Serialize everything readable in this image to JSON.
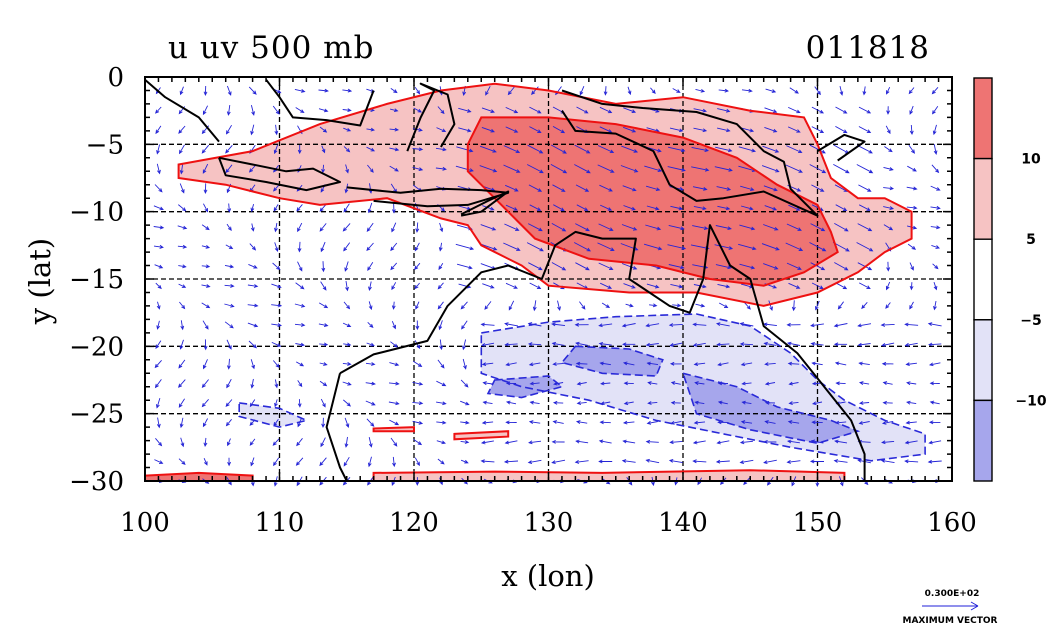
{
  "chart_data": {
    "type": "heatmap",
    "title": "u uv 500 mb",
    "date_label": "011818",
    "xlabel": "x (lon)",
    "ylabel": "y (lat)",
    "xlim": [
      100,
      160
    ],
    "ylim": [
      -30,
      0
    ],
    "x_ticks": [
      100,
      110,
      120,
      130,
      140,
      150,
      160
    ],
    "y_ticks": [
      0,
      -5,
      -10,
      -15,
      -20,
      -25,
      -30
    ],
    "x_tick_labels": [
      "100",
      "110",
      "120",
      "130",
      "140",
      "150",
      "160"
    ],
    "y_tick_labels": [
      "0",
      "−5",
      "−10",
      "−15",
      "−20",
      "−25",
      "−30"
    ],
    "grid": true,
    "colorbar": {
      "labels": [
        "10",
        "5",
        "−5",
        "−10"
      ],
      "bands": [
        {
          "from": 10,
          "to": 15,
          "color": "#ee7473"
        },
        {
          "from": 5,
          "to": 10,
          "color": "#f6c3c3"
        },
        {
          "from": -5,
          "to": 5,
          "color": "#ffffff"
        },
        {
          "from": -10,
          "to": -5,
          "color": "#e2e2f7"
        },
        {
          "from": -15,
          "to": -10,
          "color": "#a6a6ec"
        }
      ]
    },
    "regions": [
      {
        "level": "5 to 10",
        "polygon": [
          [
            102.5,
            -6.5
          ],
          [
            108,
            -5.5
          ],
          [
            113,
            -3.5
          ],
          [
            118,
            -2
          ],
          [
            122,
            -1
          ],
          [
            126,
            -0.5
          ],
          [
            130,
            -1
          ],
          [
            135,
            -2
          ],
          [
            140,
            -1.5
          ],
          [
            145,
            -2.5
          ],
          [
            149,
            -3
          ],
          [
            150,
            -5
          ],
          [
            151,
            -7.5
          ],
          [
            153,
            -9
          ],
          [
            155,
            -9
          ],
          [
            157,
            -10
          ],
          [
            157,
            -12
          ],
          [
            155,
            -13
          ],
          [
            153,
            -14.5
          ],
          [
            150,
            -16
          ],
          [
            146,
            -17
          ],
          [
            141,
            -16
          ],
          [
            136,
            -16
          ],
          [
            130,
            -15.5
          ],
          [
            128,
            -14
          ],
          [
            125,
            -12.5
          ],
          [
            124,
            -11
          ],
          [
            122,
            -10.5
          ],
          [
            118,
            -9
          ],
          [
            113,
            -9.5
          ],
          [
            110,
            -9
          ],
          [
            106,
            -8
          ],
          [
            102.5,
            -7.5
          ]
        ]
      },
      {
        "level": "10 to 15",
        "polygon": [
          [
            125,
            -3
          ],
          [
            130,
            -3
          ],
          [
            135,
            -3.5
          ],
          [
            140,
            -4.5
          ],
          [
            144,
            -6
          ],
          [
            147,
            -8
          ],
          [
            150,
            -9.5
          ],
          [
            151,
            -11.5
          ],
          [
            151.5,
            -13
          ],
          [
            149,
            -14.5
          ],
          [
            146,
            -15.5
          ],
          [
            142,
            -15
          ],
          [
            138,
            -14
          ],
          [
            133,
            -13.5
          ],
          [
            129,
            -12
          ],
          [
            126,
            -9
          ],
          [
            124,
            -7
          ],
          [
            124,
            -5
          ]
        ]
      },
      {
        "level": "10 to 15",
        "polygon": [
          [
            100,
            -29.6
          ],
          [
            104,
            -29.4
          ],
          [
            108,
            -29.6
          ],
          [
            108,
            -30
          ],
          [
            100,
            -30
          ]
        ]
      },
      {
        "level": "5 to 10",
        "polygon": [
          [
            117,
            -29.4
          ],
          [
            126,
            -29.3
          ],
          [
            134,
            -29.4
          ],
          [
            145,
            -29.2
          ],
          [
            152,
            -29.4
          ],
          [
            152,
            -30
          ],
          [
            117,
            -30
          ]
        ]
      },
      {
        "level": "5 to 10",
        "polygon": [
          [
            123,
            -26.5
          ],
          [
            127,
            -26.3
          ],
          [
            127,
            -26.7
          ],
          [
            123,
            -26.9
          ]
        ]
      },
      {
        "level": "5 to 10",
        "polygon": [
          [
            117,
            -26.1
          ],
          [
            120,
            -26.0
          ],
          [
            120,
            -26.3
          ],
          [
            117,
            -26.3
          ]
        ]
      },
      {
        "level": "-10 to -5",
        "polygon": [
          [
            125,
            -19
          ],
          [
            130,
            -18.2
          ],
          [
            135,
            -17.8
          ],
          [
            141,
            -17.6
          ],
          [
            145,
            -18.5
          ],
          [
            148,
            -20.5
          ],
          [
            150,
            -22.5
          ],
          [
            152,
            -24
          ],
          [
            155,
            -25.5
          ],
          [
            158,
            -26.5
          ],
          [
            158,
            -28
          ],
          [
            154,
            -28.5
          ],
          [
            148,
            -27.5
          ],
          [
            143,
            -26.5
          ],
          [
            138,
            -25.5
          ],
          [
            133,
            -24
          ],
          [
            128,
            -23
          ],
          [
            125,
            -22
          ]
        ]
      },
      {
        "level": "-15 to -10",
        "polygon": [
          [
            132,
            -20
          ],
          [
            136,
            -20.2
          ],
          [
            138.5,
            -21
          ],
          [
            138,
            -22.2
          ],
          [
            134,
            -22
          ],
          [
            131,
            -21.2
          ]
        ]
      },
      {
        "level": "-15 to -10",
        "polygon": [
          [
            126,
            -22.5
          ],
          [
            130,
            -22.2
          ],
          [
            131,
            -23
          ],
          [
            128,
            -23.8
          ],
          [
            125.5,
            -23.5
          ]
        ]
      },
      {
        "level": "-15 to -10",
        "polygon": [
          [
            140,
            -22
          ],
          [
            144,
            -23
          ],
          [
            147,
            -24.5
          ],
          [
            151,
            -25.5
          ],
          [
            153,
            -26.3
          ],
          [
            150,
            -27.2
          ],
          [
            145,
            -26.2
          ],
          [
            141,
            -25
          ]
        ]
      },
      {
        "level": "-10 to -5",
        "polygon": [
          [
            107,
            -24.2
          ],
          [
            110,
            -24.6
          ],
          [
            112,
            -25.5
          ],
          [
            110,
            -26
          ],
          [
            107,
            -25.2
          ]
        ]
      }
    ],
    "coastlines": [
      [
        [
          114.5,
          -22
        ],
        [
          114,
          -24
        ],
        [
          113.5,
          -26
        ],
        [
          114.5,
          -29
        ],
        [
          115,
          -30
        ]
      ],
      [
        [
          114.5,
          -22
        ],
        [
          117,
          -20.6
        ],
        [
          121,
          -19.6
        ],
        [
          122.5,
          -17
        ],
        [
          125,
          -14.5
        ],
        [
          127,
          -14
        ],
        [
          129.5,
          -15
        ],
        [
          130.5,
          -12.5
        ],
        [
          132,
          -11.5
        ],
        [
          134,
          -12
        ],
        [
          136.5,
          -12
        ],
        [
          136,
          -15
        ],
        [
          139,
          -17
        ],
        [
          140.5,
          -17.5
        ],
        [
          141.5,
          -15
        ],
        [
          142,
          -11
        ],
        [
          143.5,
          -14
        ],
        [
          145,
          -15
        ],
        [
          146,
          -18.5
        ],
        [
          148.5,
          -20.5
        ],
        [
          150.5,
          -23
        ],
        [
          152.5,
          -25.5
        ],
        [
          153.5,
          -28
        ],
        [
          153.5,
          -30
        ]
      ],
      [
        [
          105.5,
          -6
        ],
        [
          108,
          -6.5
        ],
        [
          110.5,
          -7
        ],
        [
          112.5,
          -6.8
        ],
        [
          114.5,
          -7.8
        ],
        [
          112,
          -8.4
        ],
        [
          109,
          -7.8
        ],
        [
          106,
          -7.3
        ],
        [
          105.5,
          -6
        ]
      ],
      [
        [
          115,
          -8.2
        ],
        [
          119,
          -8.6
        ],
        [
          122,
          -8.3
        ],
        [
          125,
          -8.4
        ],
        [
          127,
          -8.6
        ],
        [
          124,
          -9.5
        ],
        [
          121,
          -9.6
        ],
        [
          117,
          -9.2
        ]
      ],
      [
        [
          123.5,
          -10.2
        ],
        [
          125.5,
          -9.2
        ],
        [
          127,
          -8.5
        ],
        [
          125,
          -10
        ],
        [
          123.5,
          -10.3
        ]
      ],
      [
        [
          119.5,
          -5.5
        ],
        [
          120.5,
          -3
        ],
        [
          121.5,
          -1
        ],
        [
          120.5,
          -0.5
        ],
        [
          122.5,
          -1.3
        ],
        [
          123,
          -3.5
        ],
        [
          122,
          -5.2
        ]
      ],
      [
        [
          131,
          -1
        ],
        [
          134,
          -2
        ],
        [
          137,
          -2.3
        ],
        [
          141,
          -2.6
        ],
        [
          144,
          -3.5
        ],
        [
          146,
          -5.5
        ],
        [
          147.5,
          -6.3
        ],
        [
          148,
          -8.3
        ],
        [
          150,
          -10.3
        ],
        [
          146,
          -8.5
        ],
        [
          143,
          -9
        ],
        [
          141,
          -9.2
        ],
        [
          139,
          -8
        ],
        [
          137.8,
          -5.5
        ],
        [
          135,
          -4.2
        ],
        [
          132,
          -4
        ],
        [
          131,
          -2.5
        ]
      ],
      [
        [
          150,
          -5.5
        ],
        [
          152,
          -4.3
        ],
        [
          153.5,
          -4.8
        ],
        [
          151.5,
          -6.2
        ]
      ],
      [
        [
          100,
          -0.2
        ],
        [
          101.5,
          -1.5
        ],
        [
          104,
          -3
        ],
        [
          105.5,
          -4.8
        ]
      ],
      [
        [
          109,
          -0.2
        ],
        [
          110,
          -1.5
        ],
        [
          111,
          -3
        ],
        [
          113.5,
          -3.2
        ],
        [
          116,
          -3.6
        ],
        [
          117,
          -1
        ]
      ]
    ],
    "wind_vector_scale": {
      "value_label": "0.300E+02",
      "caption": "MAXIMUM VECTOR"
    }
  }
}
